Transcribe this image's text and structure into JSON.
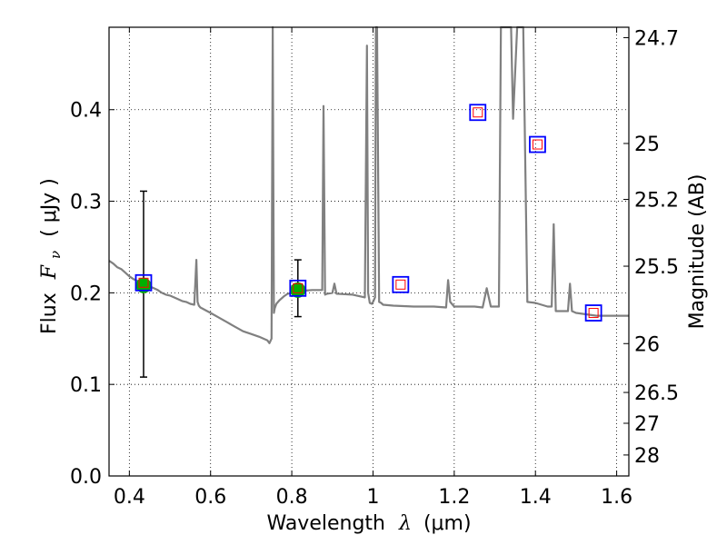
{
  "chart_data": {
    "type": "line",
    "xlabel": {
      "prefix": "Wavelength",
      "symbol": "λ",
      "unit": "(μm)"
    },
    "ylabel": {
      "prefix": "Flux",
      "symbol": "F",
      "subscript": "ν",
      "unit": "( μJy )"
    },
    "y2label": "Magnitude (AB)",
    "xlim": [
      0.35,
      1.63
    ],
    "ylim": [
      0.0,
      0.49
    ],
    "grid": true,
    "x_ticks": [
      0.4,
      0.6,
      0.8,
      1.0,
      1.2,
      1.4,
      1.6
    ],
    "x_tick_labels": [
      "0.4",
      "0.6",
      "0.8",
      "1",
      "1.2",
      "1.4",
      "1.6"
    ],
    "y_ticks": [
      0.0,
      0.1,
      0.2,
      0.3,
      0.4
    ],
    "y_tick_labels": [
      "0.0",
      "0.1",
      "0.2",
      "0.3",
      "0.4"
    ],
    "mag_ticks": [
      24.7,
      25.0,
      25.2,
      25.5,
      26.0,
      26.5,
      27.0,
      28.0
    ],
    "mag_tick_labels": [
      "24.7",
      "25",
      "25.2",
      "25.5",
      "26",
      "26.5",
      "27",
      "28"
    ],
    "colors": {
      "spectrum": "#808080",
      "photometry": "#00b000",
      "model_outer": "#0000ff",
      "model_inner": "#ff0000"
    },
    "spectrum": {
      "x": [
        0.35,
        0.36,
        0.37,
        0.38,
        0.39,
        0.4,
        0.41,
        0.42,
        0.43,
        0.44,
        0.45,
        0.46,
        0.47,
        0.48,
        0.49,
        0.5,
        0.51,
        0.52,
        0.53,
        0.54,
        0.55,
        0.56,
        0.565,
        0.568,
        0.571,
        0.575,
        0.6,
        0.62,
        0.64,
        0.66,
        0.68,
        0.7,
        0.72,
        0.74,
        0.745,
        0.75,
        0.753,
        0.756,
        0.758,
        0.762,
        0.77,
        0.78,
        0.79,
        0.8,
        0.82,
        0.85,
        0.875,
        0.878,
        0.882,
        0.887,
        0.9,
        0.905,
        0.91,
        0.95,
        0.98,
        0.985,
        0.988,
        0.992,
        0.997,
        1.0,
        1.003,
        1.005,
        1.007,
        1.01,
        1.015,
        1.02,
        1.025,
        1.05,
        1.1,
        1.15,
        1.18,
        1.185,
        1.19,
        1.2,
        1.25,
        1.27,
        1.28,
        1.29,
        1.31,
        1.315,
        1.32,
        1.33,
        1.34,
        1.345,
        1.355,
        1.36,
        1.365,
        1.37,
        1.38,
        1.4,
        1.43,
        1.44,
        1.445,
        1.45,
        1.455,
        1.46,
        1.48,
        1.485,
        1.49,
        1.5,
        1.55,
        1.6,
        1.63
      ],
      "y": [
        0.235,
        0.232,
        0.228,
        0.226,
        0.222,
        0.218,
        0.215,
        0.213,
        0.21,
        0.208,
        0.207,
        0.205,
        0.203,
        0.2,
        0.198,
        0.197,
        0.195,
        0.193,
        0.191,
        0.19,
        0.188,
        0.187,
        0.236,
        0.19,
        0.186,
        0.184,
        0.178,
        0.173,
        0.168,
        0.163,
        0.158,
        0.155,
        0.152,
        0.148,
        0.145,
        0.15,
        0.5,
        0.178,
        0.183,
        0.188,
        0.192,
        0.196,
        0.199,
        0.2,
        0.202,
        0.203,
        0.203,
        0.404,
        0.198,
        0.199,
        0.2,
        0.21,
        0.199,
        0.198,
        0.195,
        0.47,
        0.2,
        0.189,
        0.188,
        0.19,
        0.193,
        0.195,
        0.5,
        0.5,
        0.19,
        0.189,
        0.187,
        0.186,
        0.185,
        0.185,
        0.184,
        0.214,
        0.19,
        0.185,
        0.185,
        0.184,
        0.205,
        0.185,
        0.185,
        0.5,
        0.5,
        0.5,
        0.5,
        0.39,
        0.5,
        0.5,
        0.5,
        0.5,
        0.19,
        0.189,
        0.185,
        0.185,
        0.275,
        0.18,
        0.18,
        0.18,
        0.18,
        0.21,
        0.18,
        0.178,
        0.175,
        0.175,
        0.175
      ]
    },
    "photometry": [
      {
        "x": 0.435,
        "y": 0.208,
        "yerr_low": 0.108,
        "yerr_high": 0.311
      },
      {
        "x": 0.815,
        "y": 0.203,
        "yerr_low": 0.174,
        "yerr_high": 0.236
      }
    ],
    "model_points": [
      {
        "x": 0.435,
        "y": 0.211
      },
      {
        "x": 0.815,
        "y": 0.205
      },
      {
        "x": 1.068,
        "y": 0.209
      },
      {
        "x": 1.258,
        "y": 0.397
      },
      {
        "x": 1.405,
        "y": 0.362
      },
      {
        "x": 1.543,
        "y": 0.178
      }
    ]
  }
}
